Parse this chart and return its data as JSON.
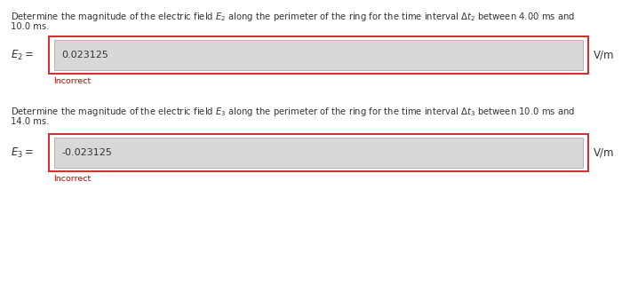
{
  "bg_color": "#f0f0f0",
  "panel_color": "#ffffff",
  "text_color": "#333333",
  "incorrect_color": "#cc0000",
  "input_bg": "#d8d8d8",
  "outer_box_edge": "#cc3333",
  "inner_box_edge": "#aaaaaa",
  "line1_text": "Determine the magnitude of the electric field $E_2$ along the perimeter of the ring for the time interval $\\Delta t_2$ between 4.00 ms and",
  "line2_text": "10.0 ms.",
  "label1": "$E_2 =$",
  "value1": "0.023125",
  "unit1": "V/m",
  "incorrect1": "Incorrect",
  "line3_text": "Determine the magnitude of the electric field $E_3$ along the perimeter of the ring for the time interval $\\Delta t_3$ between 10.0 ms and",
  "line4_text": "14.0 ms.",
  "label2": "$E_3 =$",
  "value2": "-0.023125",
  "unit2": "V/m",
  "incorrect2": "Incorrect",
  "font_size_body": 7.2,
  "font_size_value": 8.0,
  "font_size_label": 8.5,
  "font_size_incorrect": 6.8,
  "font_size_unit": 8.5
}
